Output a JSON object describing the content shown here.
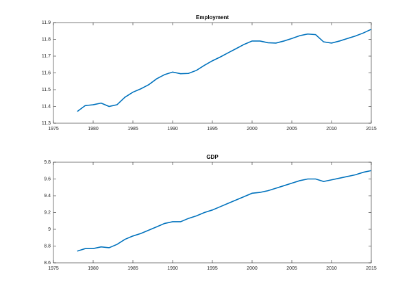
{
  "chart_data": [
    {
      "type": "line",
      "title": "Employment",
      "x": [
        1978,
        1979,
        1980,
        1981,
        1982,
        1983,
        1984,
        1985,
        1986,
        1987,
        1988,
        1989,
        1990,
        1991,
        1992,
        1993,
        1994,
        1995,
        1996,
        1997,
        1998,
        1999,
        2000,
        2001,
        2002,
        2003,
        2004,
        2005,
        2006,
        2007,
        2008,
        2009,
        2010,
        2011,
        2012,
        2013,
        2014,
        2015
      ],
      "series": [
        {
          "color": "#0072bd",
          "values": [
            11.37,
            11.405,
            11.41,
            11.42,
            11.4,
            11.41,
            11.455,
            11.485,
            11.505,
            11.53,
            11.565,
            11.59,
            11.605,
            11.595,
            11.597,
            11.615,
            11.645,
            11.672,
            11.695,
            11.72,
            11.745,
            11.77,
            11.79,
            11.79,
            11.78,
            11.778,
            11.79,
            11.805,
            11.822,
            11.832,
            11.828,
            11.785,
            11.778,
            11.79,
            11.805,
            11.82,
            11.838,
            11.86
          ]
        }
      ],
      "xlim": [
        1975,
        2015
      ],
      "xticks": [
        1975,
        1980,
        1985,
        1990,
        1995,
        2000,
        2005,
        2010,
        2015
      ],
      "ylim": [
        11.3,
        11.9
      ],
      "yticks": [
        11.3,
        11.4,
        11.5,
        11.6,
        11.7,
        11.8,
        11.9
      ]
    },
    {
      "type": "line",
      "title": "GDP",
      "x": [
        1978,
        1979,
        1980,
        1981,
        1982,
        1983,
        1984,
        1985,
        1986,
        1987,
        1988,
        1989,
        1990,
        1991,
        1992,
        1993,
        1994,
        1995,
        1996,
        1997,
        1998,
        1999,
        2000,
        2001,
        2002,
        2003,
        2004,
        2005,
        2006,
        2007,
        2008,
        2009,
        2010,
        2011,
        2012,
        2013,
        2014,
        2015
      ],
      "series": [
        {
          "color": "#0072bd",
          "values": [
            8.74,
            8.77,
            8.77,
            8.79,
            8.78,
            8.82,
            8.88,
            8.92,
            8.95,
            8.99,
            9.03,
            9.07,
            9.09,
            9.09,
            9.13,
            9.16,
            9.2,
            9.23,
            9.27,
            9.31,
            9.35,
            9.39,
            9.43,
            9.44,
            9.46,
            9.49,
            9.52,
            9.55,
            9.58,
            9.6,
            9.6,
            9.57,
            9.59,
            9.61,
            9.63,
            9.65,
            9.68,
            9.7
          ]
        }
      ],
      "xlim": [
        1975,
        2015
      ],
      "xticks": [
        1975,
        1980,
        1985,
        1990,
        1995,
        2000,
        2005,
        2010,
        2015
      ],
      "ylim": [
        8.6,
        9.8
      ],
      "yticks": [
        8.6,
        8.8,
        9,
        9.2,
        9.4,
        9.6,
        9.8
      ]
    }
  ]
}
